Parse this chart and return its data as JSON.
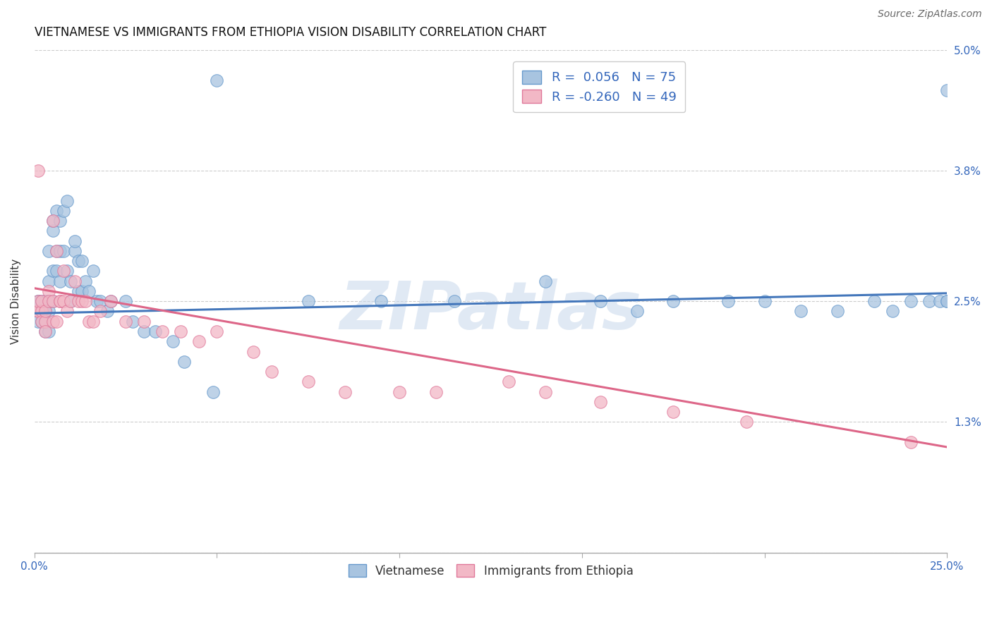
{
  "title": "VIETNAMESE VS IMMIGRANTS FROM ETHIOPIA VISION DISABILITY CORRELATION CHART",
  "source": "Source: ZipAtlas.com",
  "ylabel": "Vision Disability",
  "watermark": "ZIPatlas",
  "x_min": 0.0,
  "x_max": 0.25,
  "y_min": 0.0,
  "y_max": 0.05,
  "x_tick_positions": [
    0.0,
    0.05,
    0.1,
    0.15,
    0.2,
    0.25
  ],
  "x_tick_labels": [
    "0.0%",
    "",
    "",
    "",
    "",
    "25.0%"
  ],
  "y_tick_positions": [
    0.0,
    0.013,
    0.025,
    0.038,
    0.05
  ],
  "y_tick_labels": [
    "",
    "1.3%",
    "2.5%",
    "3.8%",
    "5.0%"
  ],
  "series1_color": "#a8c4e0",
  "series1_edge": "#6699cc",
  "series2_color": "#f2b8c6",
  "series2_edge": "#e0789a",
  "line1_color": "#4477bb",
  "line2_color": "#dd6688",
  "grid_color": "#cccccc",
  "background_color": "#ffffff",
  "title_fontsize": 12,
  "axis_label_fontsize": 11,
  "tick_fontsize": 11,
  "legend_fontsize": 13,
  "source_fontsize": 10,
  "s1_x": [
    0.001,
    0.001,
    0.001,
    0.001,
    0.001,
    0.002,
    0.002,
    0.002,
    0.002,
    0.003,
    0.003,
    0.003,
    0.003,
    0.003,
    0.004,
    0.004,
    0.004,
    0.004,
    0.004,
    0.005,
    0.005,
    0.005,
    0.005,
    0.006,
    0.006,
    0.006,
    0.007,
    0.007,
    0.007,
    0.008,
    0.008,
    0.009,
    0.009,
    0.01,
    0.01,
    0.011,
    0.011,
    0.012,
    0.012,
    0.013,
    0.013,
    0.014,
    0.015,
    0.016,
    0.017,
    0.018,
    0.02,
    0.021,
    0.025,
    0.027,
    0.03,
    0.033,
    0.038,
    0.041,
    0.049,
    0.05,
    0.075,
    0.095,
    0.115,
    0.14,
    0.155,
    0.165,
    0.175,
    0.19,
    0.2,
    0.21,
    0.22,
    0.23,
    0.235,
    0.24,
    0.245,
    0.248,
    0.25,
    0.25,
    0.25
  ],
  "s1_y": [
    0.024,
    0.024,
    0.025,
    0.025,
    0.023,
    0.024,
    0.024,
    0.025,
    0.023,
    0.024,
    0.024,
    0.025,
    0.023,
    0.022,
    0.024,
    0.025,
    0.027,
    0.03,
    0.022,
    0.032,
    0.028,
    0.033,
    0.025,
    0.03,
    0.034,
    0.028,
    0.033,
    0.03,
    0.027,
    0.034,
    0.03,
    0.028,
    0.035,
    0.027,
    0.025,
    0.03,
    0.031,
    0.029,
    0.026,
    0.026,
    0.029,
    0.027,
    0.026,
    0.028,
    0.025,
    0.025,
    0.024,
    0.025,
    0.025,
    0.023,
    0.022,
    0.022,
    0.021,
    0.019,
    0.016,
    0.047,
    0.025,
    0.025,
    0.025,
    0.027,
    0.025,
    0.024,
    0.025,
    0.025,
    0.025,
    0.024,
    0.024,
    0.025,
    0.024,
    0.025,
    0.025,
    0.025,
    0.025,
    0.025,
    0.046
  ],
  "s2_x": [
    0.001,
    0.001,
    0.001,
    0.001,
    0.002,
    0.002,
    0.002,
    0.003,
    0.003,
    0.003,
    0.004,
    0.004,
    0.005,
    0.005,
    0.005,
    0.006,
    0.006,
    0.007,
    0.007,
    0.008,
    0.008,
    0.009,
    0.01,
    0.011,
    0.012,
    0.013,
    0.014,
    0.015,
    0.016,
    0.018,
    0.021,
    0.025,
    0.03,
    0.035,
    0.04,
    0.045,
    0.05,
    0.06,
    0.065,
    0.075,
    0.085,
    0.1,
    0.11,
    0.13,
    0.14,
    0.155,
    0.175,
    0.195,
    0.24
  ],
  "s2_y": [
    0.024,
    0.024,
    0.025,
    0.038,
    0.024,
    0.025,
    0.023,
    0.023,
    0.024,
    0.022,
    0.026,
    0.025,
    0.033,
    0.025,
    0.023,
    0.03,
    0.023,
    0.025,
    0.025,
    0.028,
    0.025,
    0.024,
    0.025,
    0.027,
    0.025,
    0.025,
    0.025,
    0.023,
    0.023,
    0.024,
    0.025,
    0.023,
    0.023,
    0.022,
    0.022,
    0.021,
    0.022,
    0.02,
    0.018,
    0.017,
    0.016,
    0.016,
    0.016,
    0.017,
    0.016,
    0.015,
    0.014,
    0.013,
    0.011
  ],
  "line1_x0": 0.0,
  "line1_y0": 0.0238,
  "line1_x1": 0.25,
  "line1_y1": 0.0258,
  "line2_x0": 0.0,
  "line2_y0": 0.0263,
  "line2_x1": 0.25,
  "line2_y1": 0.0105
}
